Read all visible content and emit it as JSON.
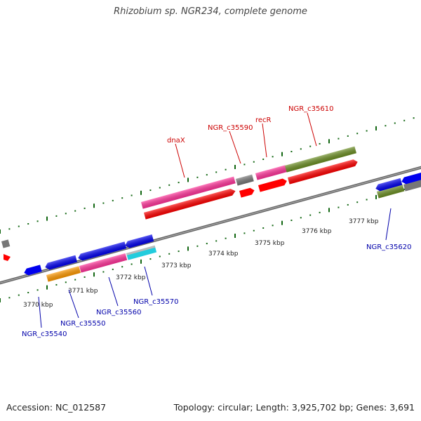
{
  "title": "Rhizobium sp. NGR234, complete genome",
  "footer": {
    "accession": "Accession: NC_012587",
    "topology": "Topology: circular; Length: 3,925,702 bp; Genes: 3,691"
  },
  "colors": {
    "forward_strand_red": "#ff0000",
    "pink": "#ff3399",
    "blue": "#0000ee",
    "grey": "#777777",
    "olive": "#6b8e23",
    "orange": "#ff9900",
    "cyan": "#22ccdd",
    "tick_green": "#116611",
    "label_red": "#cc0000",
    "label_blue": "#0000aa"
  },
  "kbp_labels": [
    "3770 kbp",
    "3771 kbp",
    "3772 kbp",
    "3773 kbp",
    "3774 kbp",
    "3775 kbp",
    "3776 kbp",
    "3777 kbp"
  ],
  "gene_labels": {
    "top": [
      "dnaX",
      "NGR_c35590",
      "recR",
      "NGR_c35610"
    ],
    "bottom": [
      "NGR_c35540",
      "NGR_c35550",
      "NGR_c35560",
      "NGR_c35570",
      "NGR_c35620"
    ]
  }
}
